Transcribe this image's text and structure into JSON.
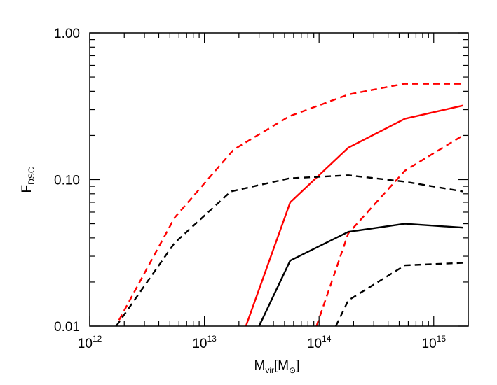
{
  "chart_data": {
    "type": "line",
    "xscale": "log",
    "yscale": "log",
    "xlim": [
      1000000000000.0,
      2000000000000000.0
    ],
    "ylim": [
      0.01,
      1.0
    ],
    "grid": false,
    "legend": "none",
    "xlabel": {
      "main": "M",
      "sub": "vir",
      "unit_open": "[M",
      "unit_sub": "⊙",
      "unit_close": "]"
    },
    "ylabel": {
      "main": "F",
      "sub": "DSC"
    },
    "xticks": [
      {
        "value": 1000000000000.0,
        "base": "10",
        "exp": "12"
      },
      {
        "value": 10000000000000.0,
        "base": "10",
        "exp": "13"
      },
      {
        "value": 100000000000000.0,
        "base": "10",
        "exp": "14"
      },
      {
        "value": 1000000000000000.0,
        "base": "10",
        "exp": "15"
      }
    ],
    "yticks": [
      {
        "value": 0.01,
        "label": "0.01"
      },
      {
        "value": 0.1,
        "label": "0.10"
      },
      {
        "value": 1.0,
        "label": "1.00"
      }
    ],
    "series": [
      {
        "color": "#ff0000",
        "dash": "dashed",
        "x": [
          1800000000000.0,
          5500000000000.0,
          18000000000000.0,
          55000000000000.0,
          180000000000000.0,
          550000000000000.0,
          1800000000000000.0
        ],
        "y": [
          0.011,
          0.055,
          0.16,
          0.27,
          0.38,
          0.45,
          0.45
        ]
      },
      {
        "color": "#ff0000",
        "dash": "solid",
        "x": [
          23000000000000.0,
          56000000000000.0,
          180000000000000.0,
          560000000000000.0,
          1800000000000000.0
        ],
        "y": [
          0.01,
          0.07,
          0.165,
          0.26,
          0.32
        ]
      },
      {
        "color": "#ff0000",
        "dash": "dashed",
        "x": [
          95000000000000.0,
          180000000000000.0,
          560000000000000.0,
          1800000000000000.0
        ],
        "y": [
          0.01,
          0.043,
          0.115,
          0.2
        ]
      },
      {
        "color": "#000000",
        "dash": "dashed",
        "x": [
          1700000000000.0,
          5500000000000.0,
          17000000000000.0,
          55000000000000.0,
          180000000000000.0,
          550000000000000.0,
          1800000000000000.0
        ],
        "y": [
          0.01,
          0.037,
          0.083,
          0.102,
          0.107,
          0.097,
          0.083
        ]
      },
      {
        "color": "#000000",
        "dash": "solid",
        "x": [
          30000000000000.0,
          56000000000000.0,
          180000000000000.0,
          560000000000000.0,
          1800000000000000.0
        ],
        "y": [
          0.01,
          0.028,
          0.044,
          0.05,
          0.047
        ]
      },
      {
        "color": "#000000",
        "dash": "dashed",
        "x": [
          140000000000000.0,
          180000000000000.0,
          560000000000000.0,
          1800000000000000.0
        ],
        "y": [
          0.01,
          0.015,
          0.026,
          0.027
        ]
      }
    ]
  }
}
